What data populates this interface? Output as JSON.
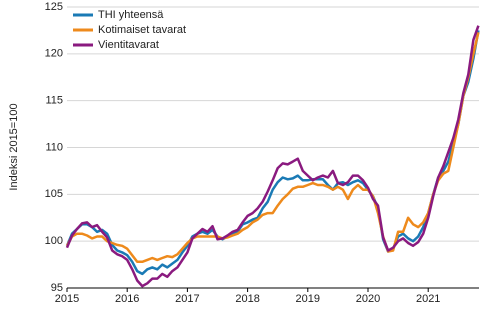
{
  "chart_data": {
    "type": "line",
    "y_label": "Indeksi 2015=100",
    "categories": [
      "2015",
      null,
      null,
      null,
      null,
      null,
      null,
      null,
      null,
      null,
      null,
      null,
      "2016",
      null,
      null,
      null,
      null,
      null,
      null,
      null,
      null,
      null,
      null,
      null,
      "2017",
      null,
      null,
      null,
      null,
      null,
      null,
      null,
      null,
      null,
      null,
      null,
      "2018",
      null,
      null,
      null,
      null,
      null,
      null,
      null,
      null,
      null,
      null,
      null,
      "2019",
      null,
      null,
      null,
      null,
      null,
      null,
      null,
      null,
      null,
      null,
      null,
      "2020",
      null,
      null,
      null,
      null,
      null,
      null,
      null,
      null,
      null,
      null,
      null,
      "2021",
      null,
      null,
      null,
      null,
      null,
      null,
      null,
      null,
      null,
      null
    ],
    "ylim": [
      95,
      125
    ],
    "yticks": [
      95,
      100,
      105,
      110,
      115,
      120,
      125
    ],
    "grid": true,
    "legend": "upper-left",
    "series": [
      {
        "name": "THI yhteensä",
        "color": "#1a7ab5",
        "values": [
          99.5,
          100.8,
          101.3,
          101.8,
          101.8,
          101.5,
          101.0,
          101.2,
          100.8,
          99.6,
          99.0,
          98.8,
          98.5,
          97.8,
          96.8,
          96.5,
          97.0,
          97.2,
          97.0,
          97.5,
          97.2,
          97.6,
          98.0,
          98.8,
          99.5,
          100.5,
          100.8,
          101.0,
          100.8,
          101.2,
          100.5,
          100.2,
          100.5,
          100.8,
          101.0,
          101.8,
          102.0,
          102.3,
          102.5,
          103.5,
          104.2,
          105.5,
          106.3,
          106.8,
          106.6,
          106.7,
          107.0,
          106.5,
          106.5,
          106.6,
          106.6,
          106.6,
          106.0,
          105.5,
          106.2,
          106.3,
          106.0,
          106.3,
          106.5,
          106.2,
          105.5,
          104.8,
          103.5,
          100.2,
          98.9,
          99.2,
          100.5,
          100.8,
          100.3,
          100.0,
          100.5,
          101.5,
          103.0,
          105.0,
          106.8,
          107.5,
          108.5,
          110.5,
          112.5,
          115.5,
          117.0,
          119.5,
          122.5
        ]
      },
      {
        "name": "Kotimaiset tavarat",
        "color": "#ee8a1c",
        "values": [
          99.5,
          100.5,
          100.8,
          100.8,
          100.6,
          100.3,
          100.5,
          100.5,
          100.0,
          99.8,
          99.6,
          99.5,
          99.2,
          98.5,
          97.8,
          97.8,
          98.0,
          98.2,
          98.0,
          98.2,
          98.4,
          98.3,
          98.6,
          99.2,
          99.8,
          100.3,
          100.5,
          100.5,
          100.5,
          100.5,
          100.5,
          100.3,
          100.4,
          100.6,
          100.8,
          101.2,
          101.5,
          102.0,
          102.3,
          102.8,
          103.0,
          103.0,
          103.8,
          104.5,
          105.0,
          105.6,
          105.8,
          105.8,
          106.0,
          106.2,
          106.0,
          106.0,
          105.8,
          105.5,
          105.8,
          105.5,
          104.5,
          105.5,
          106.0,
          105.5,
          105.5,
          104.8,
          103.0,
          100.5,
          98.9,
          99.0,
          101.0,
          101.0,
          102.5,
          101.8,
          101.5,
          102.0,
          103.0,
          105.0,
          106.5,
          107.2,
          107.5,
          110.0,
          112.5,
          115.5,
          117.5,
          120.0,
          122.3
        ]
      },
      {
        "name": "Vientitavarat",
        "color": "#8a1a7f",
        "values": [
          99.3,
          100.6,
          101.3,
          101.9,
          102.0,
          101.5,
          101.7,
          101.0,
          100.4,
          99.0,
          98.6,
          98.4,
          98.0,
          97.0,
          95.8,
          95.2,
          95.5,
          96.0,
          96.0,
          96.5,
          96.2,
          96.8,
          97.2,
          98.0,
          98.8,
          100.3,
          100.8,
          101.3,
          101.0,
          101.6,
          100.2,
          100.3,
          100.6,
          101.0,
          101.2,
          102.0,
          102.7,
          103.0,
          103.5,
          104.2,
          105.3,
          106.5,
          107.8,
          108.3,
          108.2,
          108.5,
          108.8,
          107.5,
          107.0,
          106.5,
          106.8,
          107.0,
          106.8,
          107.5,
          106.2,
          106.0,
          106.3,
          107.0,
          107.0,
          106.5,
          105.7,
          104.5,
          103.8,
          100.4,
          99.0,
          99.3,
          100.0,
          100.3,
          99.8,
          99.5,
          99.9,
          100.8,
          102.5,
          104.8,
          106.8,
          108.0,
          109.5,
          111.0,
          113.0,
          115.8,
          117.8,
          121.5,
          123.0
        ]
      }
    ]
  }
}
